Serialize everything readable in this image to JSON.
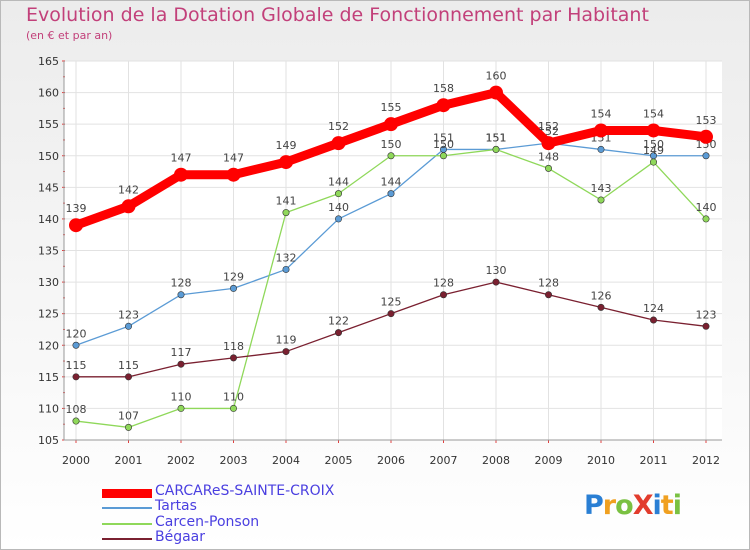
{
  "chart_data": {
    "type": "line",
    "title": "Evolution de la Dotation Globale de Fonctionnement par Habitant",
    "subtitle": "(en € et par an)",
    "x": [
      "2000",
      "2001",
      "2002",
      "2003",
      "2004",
      "2005",
      "2006",
      "2007",
      "2008",
      "2009",
      "2010",
      "2011",
      "2012"
    ],
    "ylim": [
      105,
      165
    ],
    "yticks": [
      105,
      110,
      115,
      120,
      125,
      130,
      135,
      140,
      145,
      150,
      155,
      160,
      165
    ],
    "series": [
      {
        "name": "CARCAReS-SAINTE-CROIX",
        "color": "#ff0000",
        "values": [
          139,
          142,
          147,
          147,
          149,
          152,
          155,
          158,
          160,
          152,
          154,
          154,
          153
        ],
        "labels": [
          "139",
          "142",
          "147",
          "147",
          "149",
          "152",
          "155",
          "158",
          "160",
          "152",
          "154",
          "154",
          "153"
        ]
      },
      {
        "name": "Tartas",
        "color": "#5b9bd5",
        "values": [
          120,
          123,
          128,
          129,
          132,
          140,
          144,
          151,
          151,
          152,
          151,
          150,
          150
        ],
        "labels": [
          "120",
          "123",
          "128",
          "129",
          "132",
          "140",
          "144",
          "151",
          "151",
          "152",
          "151",
          "150",
          "150"
        ]
      },
      {
        "name": "Carcen-Ponson",
        "color": "#8fd85a",
        "values": [
          108,
          107,
          110,
          110,
          141,
          144,
          150,
          150,
          151,
          148,
          143,
          149,
          140
        ],
        "labels": [
          "108",
          "107",
          "110",
          "110",
          "141",
          "144",
          "150",
          "150",
          "151",
          "148",
          "143",
          "149",
          "140"
        ]
      },
      {
        "name": "Bégaar",
        "color": "#7a2030",
        "values": [
          115,
          115,
          117,
          118,
          119,
          122,
          125,
          128,
          130,
          128,
          126,
          124,
          123
        ],
        "labels": [
          "115",
          "115",
          "117",
          "118",
          "119",
          "122",
          "125",
          "128",
          "130",
          "128",
          "126",
          "124",
          "123"
        ]
      }
    ]
  },
  "logo": {
    "text": "ProXiti",
    "letters": [
      "P",
      "r",
      "o",
      "X",
      "i",
      "t",
      "i"
    ],
    "colors": [
      "#2a7fd4",
      "#f0a020",
      "#7ac142",
      "#e23c2d",
      "#2a7fd4",
      "#f0a020",
      "#7ac142"
    ]
  }
}
